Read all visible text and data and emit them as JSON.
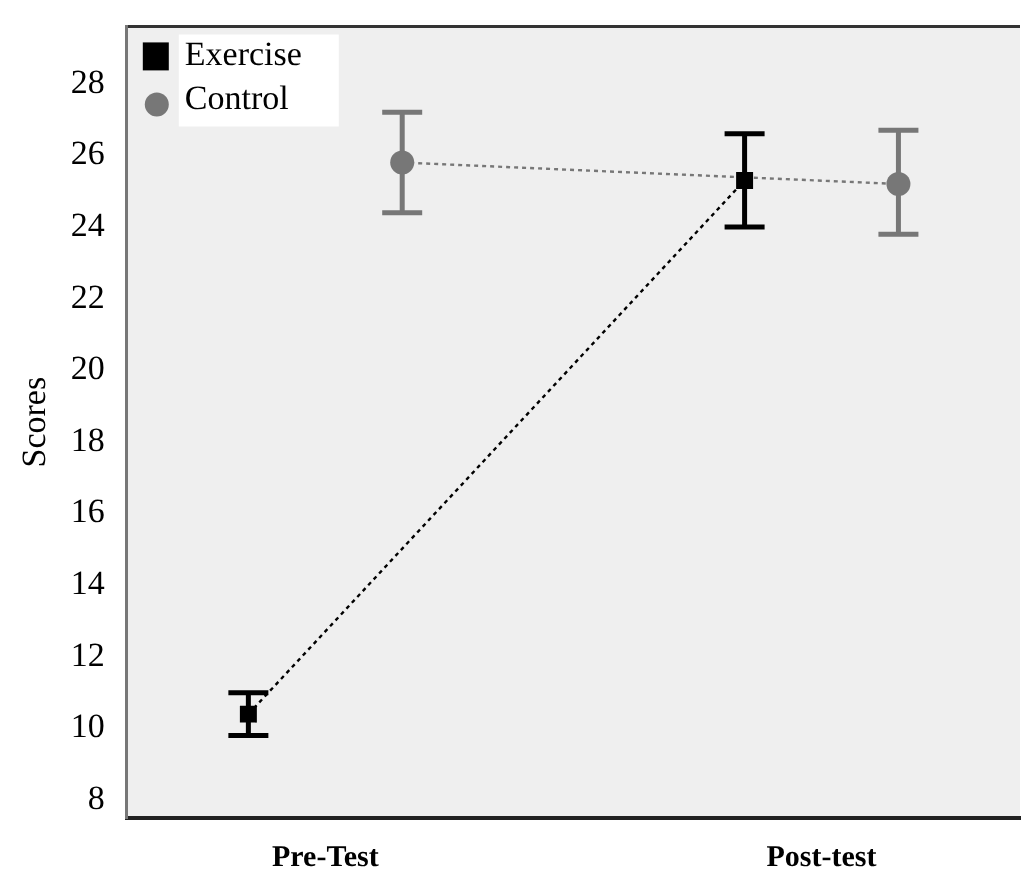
{
  "chart_data": {
    "type": "line",
    "ylabel": "Scores",
    "categories": [
      "Pre-Test",
      "Post-test"
    ],
    "ylim": [
      7.5,
      29.6
    ],
    "yticks": [
      8,
      10,
      12,
      14,
      16,
      18,
      20,
      22,
      24,
      26,
      28
    ],
    "grid": false,
    "legend": "top left",
    "line_style": "dotted",
    "series": [
      {
        "name": "Exercise",
        "color": "#000000",
        "marker": "square",
        "values": [
          10.4,
          25.3
        ],
        "errors": [
          [
            9.8,
            11.0
          ],
          [
            24.0,
            26.6
          ]
        ]
      },
      {
        "name": "Control",
        "color": "#777777",
        "marker": "circle",
        "values": [
          25.8,
          25.2
        ],
        "errors": [
          [
            24.4,
            27.2
          ],
          [
            23.8,
            26.7
          ]
        ]
      }
    ]
  }
}
